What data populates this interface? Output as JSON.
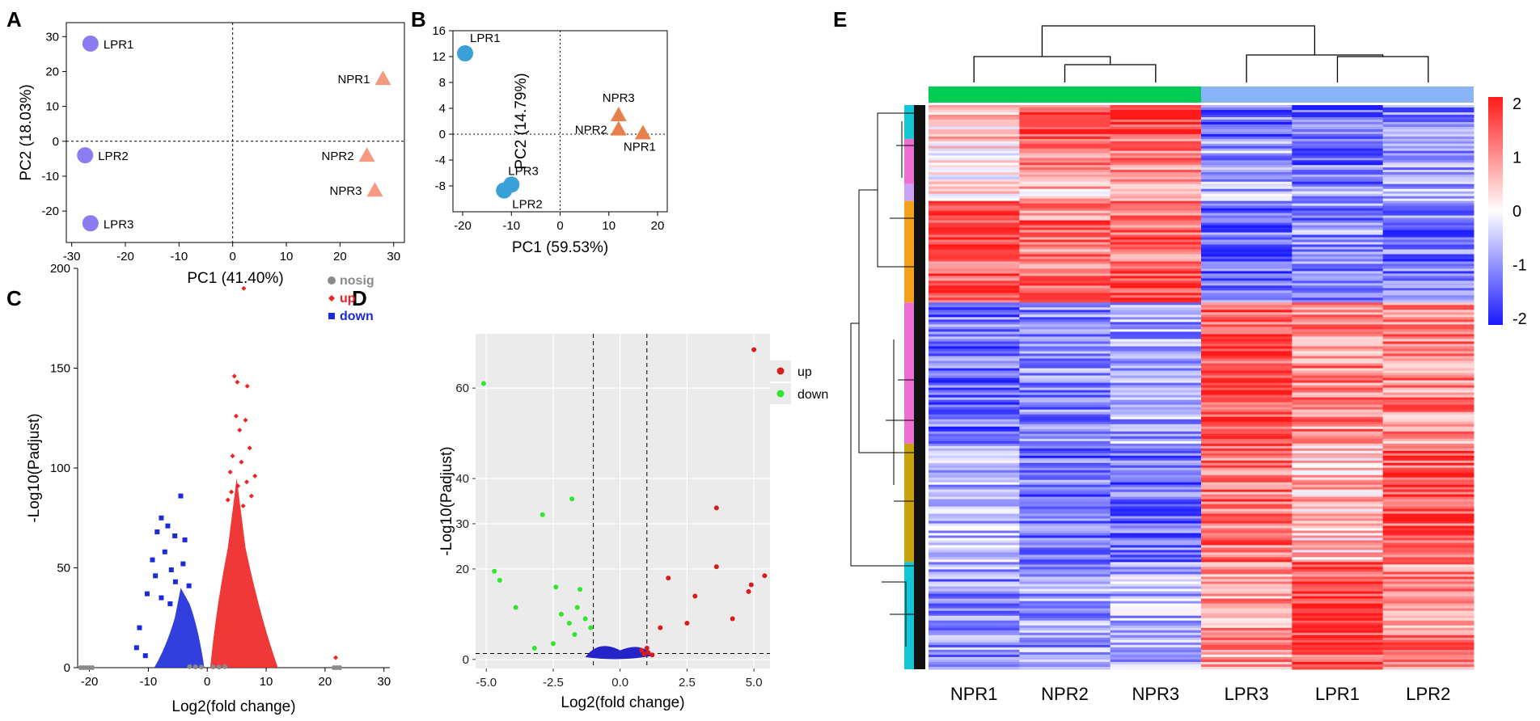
{
  "colors": {
    "lpr_a": "#8b7cf2",
    "npr_a": "#f59a80",
    "lpr_b": "#3aa0d8",
    "npr_b": "#e9804b",
    "nosig": "#8a8a8a",
    "up_c": "#ee2222",
    "down_c": "#1b2bd8",
    "up_d": "#d81c1c",
    "down_d": "#2ee62e",
    "d_blue": "#2424c8",
    "ggbg": "#ebebeb",
    "group_green": "#00cc55",
    "group_blue": "#8ab4f8",
    "hm_high": "#ff1a1a",
    "hm_mid": "#ffffff",
    "hm_low": "#1a1aff"
  },
  "chart_data": [
    {
      "panel": "A",
      "type": "scatter",
      "xlabel": "PC1 (41.40%)",
      "ylabel": "PC2 (18.03%)",
      "xlim": [
        -31,
        32
      ],
      "ylim": [
        -29,
        34
      ],
      "xticks": [
        -30,
        -20,
        -10,
        0,
        10,
        20,
        30
      ],
      "yticks": [
        30,
        20,
        10,
        0,
        -10,
        -20
      ],
      "points": [
        {
          "label": "LPR1",
          "group": "LPR",
          "x": -26.5,
          "y": 28
        },
        {
          "label": "LPR2",
          "group": "LPR",
          "x": -27.5,
          "y": -4
        },
        {
          "label": "LPR3",
          "group": "LPR",
          "x": -26.5,
          "y": -23.5
        },
        {
          "label": "NPR1",
          "group": "NPR",
          "x": 28,
          "y": 18
        },
        {
          "label": "NPR2",
          "group": "NPR",
          "x": 25,
          "y": -4
        },
        {
          "label": "NPR3",
          "group": "NPR",
          "x": 26.5,
          "y": -14
        }
      ]
    },
    {
      "panel": "B",
      "type": "scatter",
      "xlabel": "PC1 (59.53%)",
      "ylabel": "PC2 (14.79%)",
      "xlim": [
        -22,
        22
      ],
      "ylim": [
        -12,
        16
      ],
      "xticks": [
        -20,
        -10,
        0,
        10,
        20
      ],
      "yticks": [
        16,
        12,
        8,
        4,
        0,
        -4,
        -8
      ],
      "points": [
        {
          "label": "LPR1",
          "group": "LPR",
          "x": -19.5,
          "y": 12.5
        },
        {
          "label": "LPR3",
          "group": "LPR",
          "x": -10,
          "y": -7.8
        },
        {
          "label": "LPR2",
          "group": "LPR",
          "x": -11.5,
          "y": -8.7
        },
        {
          "label": "NPR3",
          "group": "NPR",
          "x": 12,
          "y": 3
        },
        {
          "label": "NPR2",
          "group": "NPR",
          "x": 12,
          "y": 0.8
        },
        {
          "label": "NPR1",
          "group": "NPR",
          "x": 17,
          "y": 0.2
        }
      ]
    },
    {
      "panel": "C",
      "type": "scatter",
      "xlabel": "Log2(fold change)",
      "ylabel": "-Log10(Padjust)",
      "xlim": [
        -22,
        31
      ],
      "ylim": [
        0,
        200
      ],
      "xticks": [
        -20,
        -10,
        0,
        10,
        20,
        30
      ],
      "yticks": [
        200,
        150,
        100,
        50,
        0
      ],
      "legend": [
        "nosig",
        "up",
        "down"
      ],
      "legend_position": "top-right",
      "nosig_points": [
        [
          -21.5,
          0
        ],
        [
          -21,
          0
        ],
        [
          -20.5,
          0
        ],
        [
          -20,
          0
        ],
        [
          -19.5,
          0
        ],
        [
          -3,
          0.5
        ],
        [
          -2,
          0.4
        ],
        [
          -1,
          0.3
        ],
        [
          1,
          0.4
        ],
        [
          2,
          0.3
        ],
        [
          3,
          0.5
        ],
        [
          21.5,
          0
        ],
        [
          22,
          0
        ],
        [
          22.5,
          0
        ]
      ],
      "up_points": [
        [
          6.2,
          190
        ],
        [
          4.6,
          146
        ],
        [
          5.1,
          143
        ],
        [
          6.8,
          141
        ],
        [
          4.9,
          126
        ],
        [
          6.5,
          124
        ],
        [
          5.5,
          119
        ],
        [
          7.2,
          110
        ],
        [
          4.3,
          106
        ],
        [
          5.8,
          103
        ],
        [
          3.9,
          98
        ],
        [
          8.1,
          96
        ],
        [
          6.7,
          93
        ],
        [
          5.2,
          91
        ],
        [
          4.1,
          88
        ],
        [
          7.5,
          86
        ],
        [
          3.5,
          84
        ],
        [
          6.1,
          81
        ],
        [
          21.8,
          5
        ]
      ],
      "down_points": [
        [
          -4.5,
          86
        ],
        [
          -7.8,
          75
        ],
        [
          -6.7,
          71
        ],
        [
          -8.5,
          68
        ],
        [
          -5.5,
          66
        ],
        [
          -3.8,
          64
        ],
        [
          -7.2,
          58
        ],
        [
          -9.3,
          54
        ],
        [
          -4.1,
          52
        ],
        [
          -6.1,
          49
        ],
        [
          -8.8,
          46
        ],
        [
          -5.4,
          43
        ],
        [
          -3.1,
          41
        ],
        [
          -10.2,
          37
        ],
        [
          -7.8,
          35
        ],
        [
          -6.3,
          32
        ],
        [
          -11.5,
          20
        ],
        [
          -12,
          10
        ],
        [
          -10.5,
          6
        ]
      ]
    },
    {
      "panel": "D",
      "type": "scatter",
      "xlabel": "Log2(fold change)",
      "ylabel": "-Log10(Padjust)",
      "xlim": [
        -5.4,
        5.6
      ],
      "ylim": [
        -2,
        72
      ],
      "xticks": [
        -5.0,
        -2.5,
        0.0,
        2.5,
        5.0
      ],
      "xtick_labels": [
        "-5.0",
        "-2.5",
        "0.0",
        "2.5",
        "5.0"
      ],
      "yticks": [
        60,
        40,
        30,
        20,
        0
      ],
      "legend": [
        "up",
        "down"
      ],
      "legend_position": "top-right",
      "up_points": [
        [
          5.0,
          68.5
        ],
        [
          3.6,
          33.5
        ],
        [
          3.6,
          20.5
        ],
        [
          5.4,
          18.5
        ],
        [
          1.8,
          18
        ],
        [
          4.9,
          16.5
        ],
        [
          4.8,
          15
        ],
        [
          2.8,
          14
        ],
        [
          4.2,
          9
        ],
        [
          2.5,
          8
        ],
        [
          1.5,
          7
        ],
        [
          1.05,
          1.5
        ],
        [
          0.9,
          1.2
        ],
        [
          1.2,
          1.0
        ],
        [
          0.8,
          2
        ],
        [
          1.0,
          2.5
        ]
      ],
      "down_points": [
        [
          -5.1,
          61
        ],
        [
          -1.8,
          35.5
        ],
        [
          -2.9,
          32
        ],
        [
          -4.7,
          19.5
        ],
        [
          -4.5,
          17.5
        ],
        [
          -2.4,
          16
        ],
        [
          -1.5,
          15.5
        ],
        [
          -3.9,
          11.5
        ],
        [
          -2.2,
          10
        ],
        [
          -1.6,
          11.5
        ],
        [
          -1.3,
          9
        ],
        [
          -1.9,
          8
        ],
        [
          -1.1,
          7
        ],
        [
          -1.7,
          5.5
        ],
        [
          -2.5,
          3.5
        ],
        [
          -3.2,
          2.5
        ]
      ]
    },
    {
      "panel": "E",
      "type": "heatmap",
      "columns": [
        "NPR1",
        "NPR2",
        "NPR3",
        "LPR3",
        "LPR1",
        "LPR2"
      ],
      "color_scale_ticks": [
        2,
        1,
        0,
        -1,
        -2
      ],
      "color_scale_labels": [
        "2",
        "1",
        "0",
        "-1",
        "-2"
      ],
      "color_range": [
        -2,
        2
      ],
      "groups": [
        "NPR",
        "LPR"
      ],
      "clusters": [
        "cyan",
        "pink",
        "lavender",
        "orange",
        "pink",
        "olive",
        "cyan"
      ],
      "row_blocks": [
        {
          "cluster": "cyan",
          "fraction": 0.06,
          "values": [
            0.5,
            1.5,
            1.8,
            -1.2,
            -1.4,
            -1.0
          ]
        },
        {
          "cluster": "pink",
          "fraction": 0.08,
          "values": [
            0.3,
            1.0,
            1.0,
            -0.8,
            -1.2,
            -0.9
          ]
        },
        {
          "cluster": "lavender",
          "fraction": 0.03,
          "values": [
            0.2,
            0.5,
            0.8,
            -0.6,
            -0.8,
            -0.7
          ]
        },
        {
          "cluster": "orange",
          "fraction": 0.18,
          "values": [
            1.5,
            1.2,
            1.3,
            -1.3,
            -1.0,
            -1.2
          ]
        },
        {
          "cluster": "pink",
          "fraction": 0.25,
          "values": [
            -1.2,
            -1.0,
            -0.8,
            1.5,
            1.0,
            1.0
          ]
        },
        {
          "cluster": "olive",
          "fraction": 0.21,
          "values": [
            -0.6,
            -1.2,
            -1.3,
            1.2,
            0.5,
            1.5
          ]
        },
        {
          "cluster": "cyan",
          "fraction": 0.19,
          "values": [
            -0.9,
            -0.8,
            -0.6,
            0.9,
            1.6,
            1.0
          ]
        }
      ]
    }
  ],
  "panel_labels": {
    "a": "A",
    "b": "B",
    "c": "C",
    "d": "D",
    "e": "E"
  }
}
